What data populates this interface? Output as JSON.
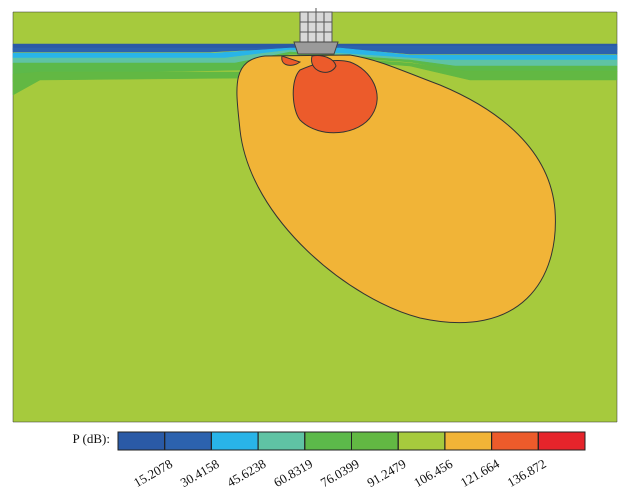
{
  "chart_data": {
    "type": "contour",
    "colorbar_label": "P (dB):",
    "colors": [
      "#2a5aa6",
      "#2c62ae",
      "#29b4e8",
      "#5fc3a4",
      "#5cb94a",
      "#62b843",
      "#a6ca3d",
      "#f1b437",
      "#ec5b2b",
      "#e5242b"
    ],
    "clim": [
      0,
      152.08
    ],
    "cticks": [
      15.2078,
      30.4158,
      45.6238,
      60.8319,
      76.0399,
      91.2479,
      106.456,
      121.664,
      136.872
    ]
  }
}
